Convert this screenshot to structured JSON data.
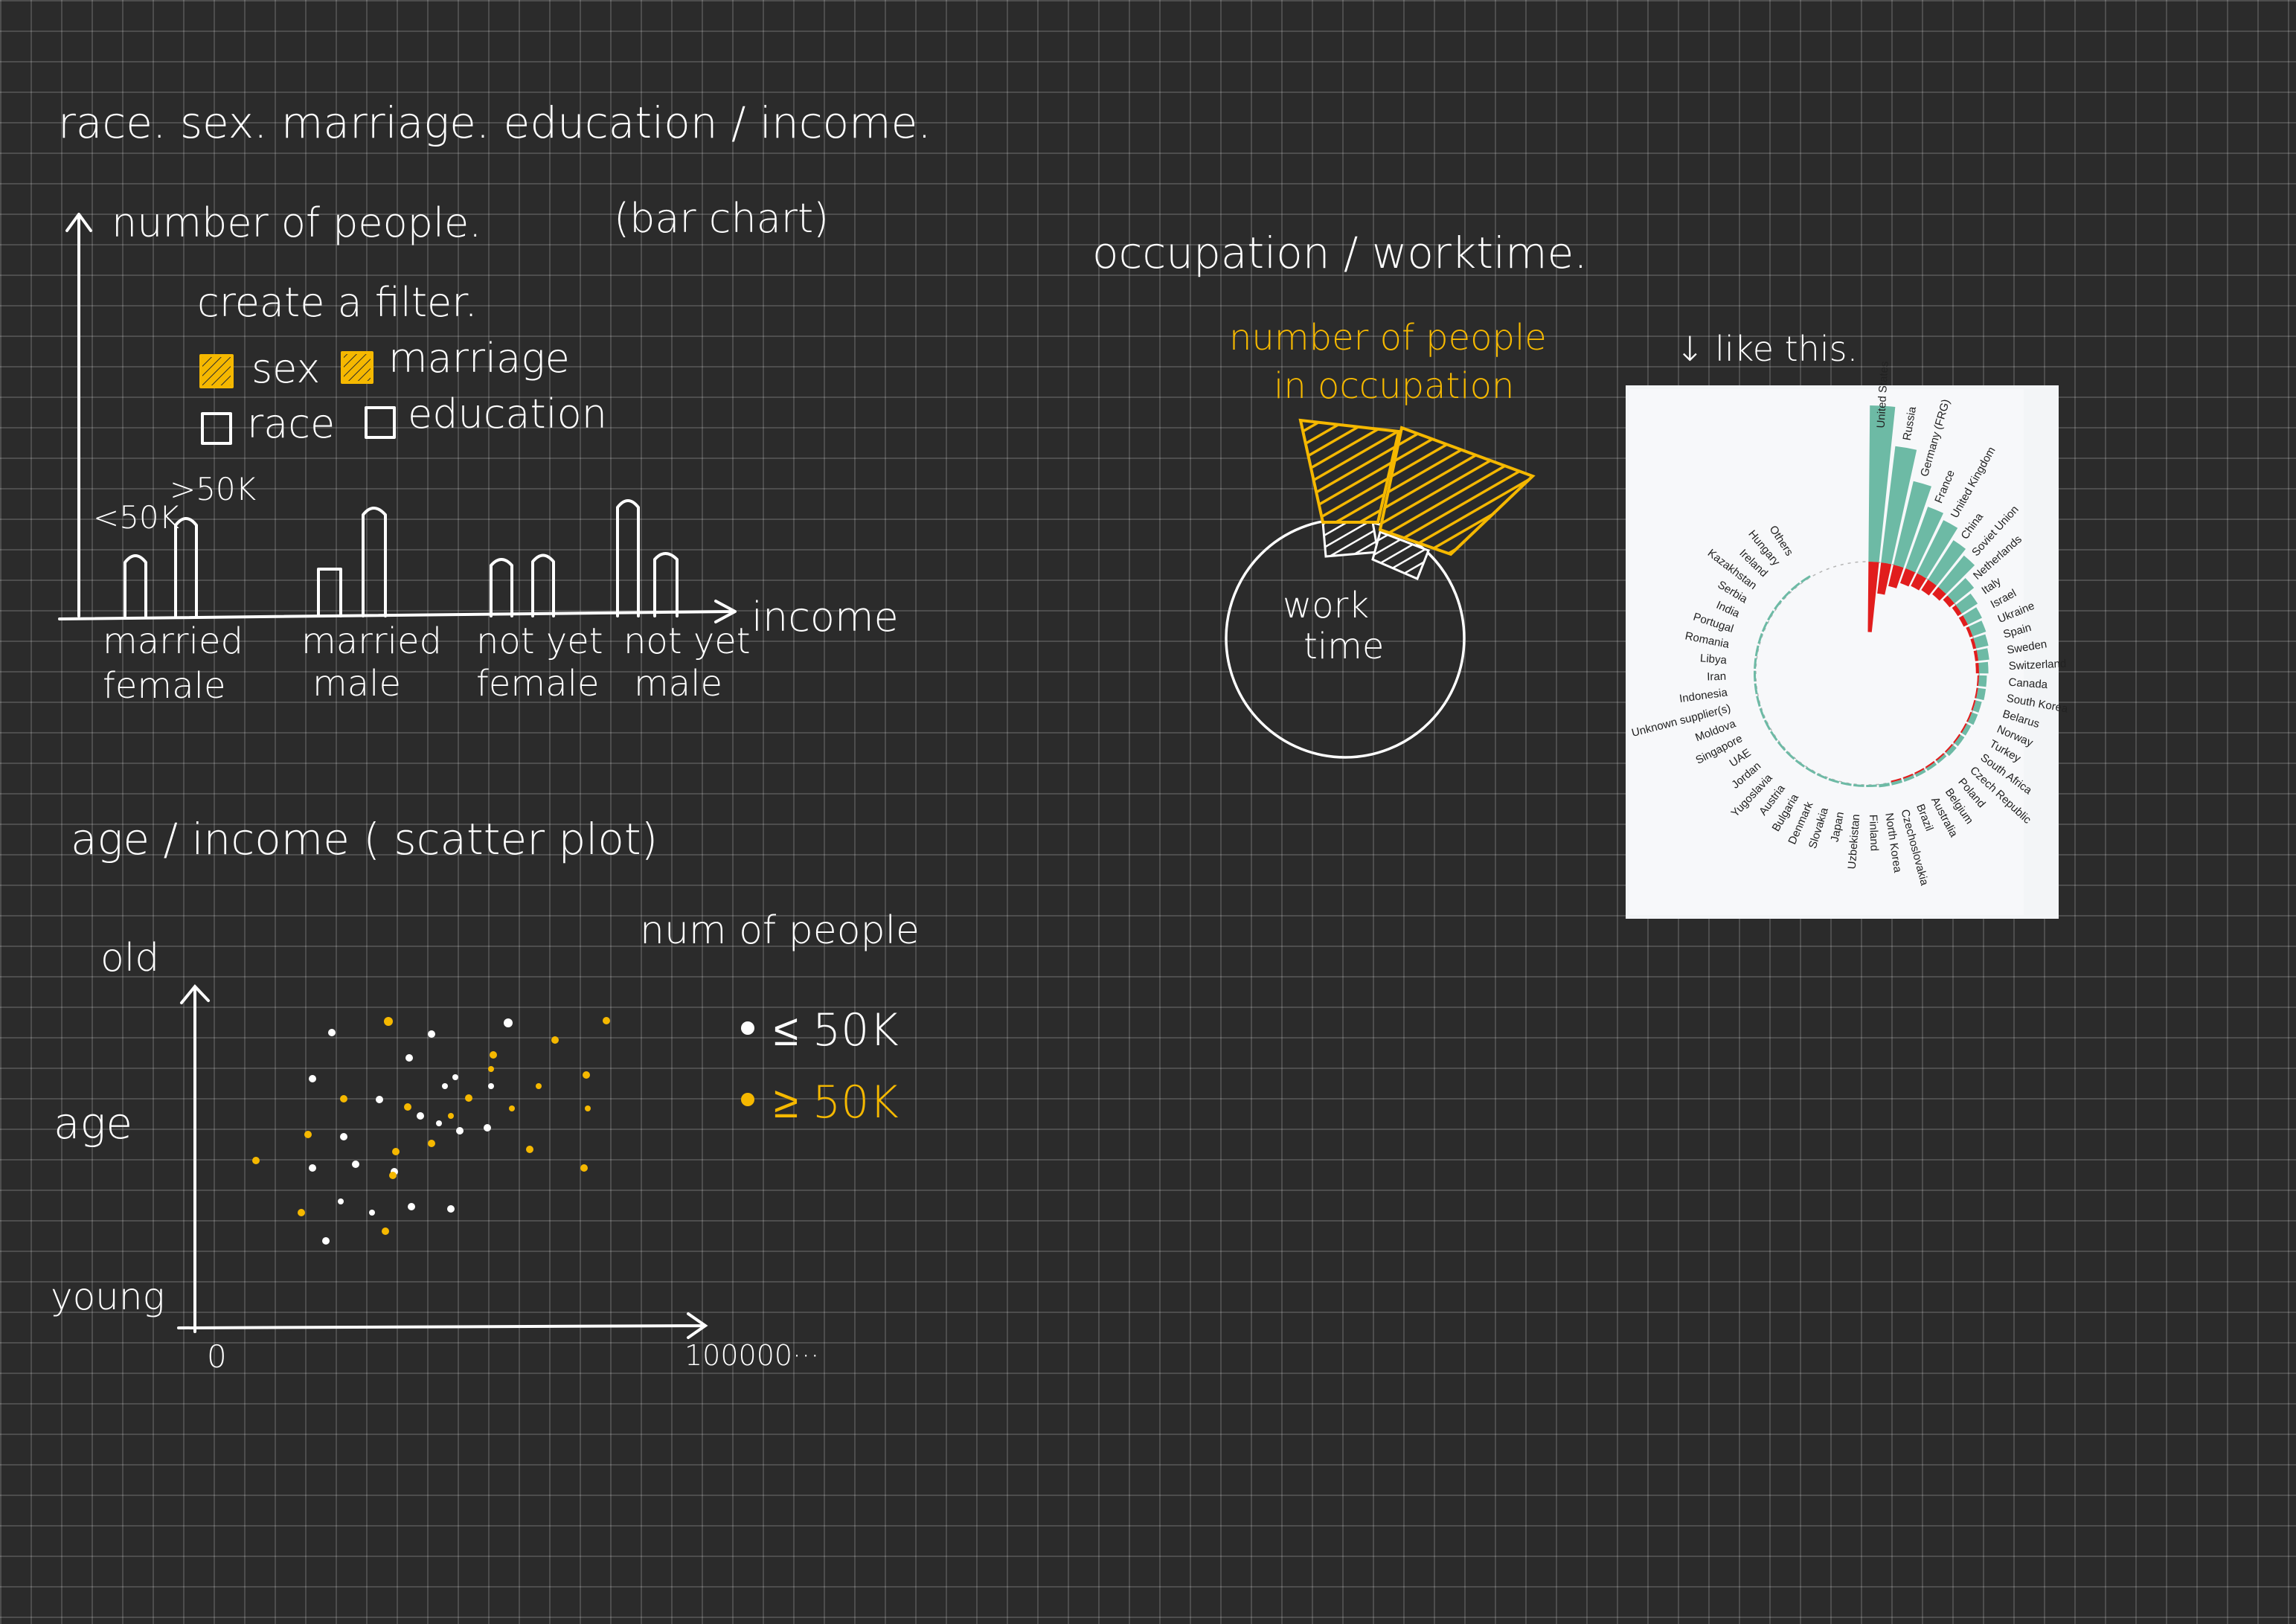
{
  "colors": {
    "background": "#2b2b2b",
    "ink": "#ffffff",
    "accent": "#f5b800",
    "reference_bg": "#f3f5f7",
    "reference_text": "#222222",
    "reference_teal": "#6dbaa5",
    "reference_red": "#e11d1d"
  },
  "section1": {
    "title": "race. sex. marriage. education / income.",
    "y_label": "number of people.",
    "chart_note": "(bar chart)",
    "filter_title": "create a filter.",
    "filters": [
      {
        "label": "sex",
        "checked": true
      },
      {
        "label": "marriage",
        "checked": true
      },
      {
        "label": "race",
        "checked": false
      },
      {
        "label": "education",
        "checked": false
      }
    ],
    "legend_low": "<50K",
    "legend_high": ">50K",
    "x_label": "income",
    "groups": [
      {
        "line1": "married",
        "line2": "female"
      },
      {
        "line1": "married",
        "line2": "male"
      },
      {
        "line1": "not yet",
        "line2": "female"
      },
      {
        "line1": "not yet",
        "line2": "male"
      }
    ]
  },
  "section2": {
    "title": "age / income ( scatter plot)",
    "y_top": "old",
    "y_label": "age",
    "y_bottom": "young",
    "x_start": "0",
    "x_end": "100000···",
    "legend_title": "num of people",
    "legend": [
      {
        "label": "≤ 50K",
        "color": "#ffffff"
      },
      {
        "label": "≥ 50K",
        "color": "#f5b800"
      }
    ]
  },
  "section3": {
    "title": "occupation / worktime.",
    "annotation_line1": "number of people",
    "annotation_line2": "in occupation",
    "center_line1": "work",
    "center_line2": "time",
    "reference_note": "↓ like this."
  },
  "reference_chart": {
    "type": "radial-bar",
    "categories": [
      "United States",
      "Russia",
      "Germany (FRG)",
      "France",
      "United Kingdom",
      "China",
      "Soviet Union",
      "Netherlands",
      "Italy",
      "Israel",
      "Ukraine",
      "Spain",
      "Sweden",
      "Switzerland",
      "Canada",
      "South Korea",
      "Belarus",
      "Norway",
      "Turkey",
      "South Africa",
      "Czech Republic",
      "Poland",
      "Belgium",
      "Australia",
      "Brazil",
      "Czechoslovakia",
      "North Korea",
      "Finland",
      "Uzbekistan",
      "Japan",
      "Slovakia",
      "Denmark",
      "Bulgaria",
      "Austria",
      "Yugoslavia",
      "Jordan",
      "UAE",
      "Singapore",
      "Moldova",
      "Unknown supplier(s)",
      "Indonesia",
      "Iran",
      "Libya",
      "Romania",
      "Portugal",
      "India",
      "Serbia",
      "Kazakhstan",
      "Ireland",
      "Hungary",
      "Others"
    ],
    "series": [
      {
        "values": [
          100,
          75,
          55,
          42,
          38,
          30,
          26,
          16,
          12,
          10,
          9,
          8,
          7,
          6,
          5,
          5,
          4,
          4,
          3,
          3,
          3,
          2,
          2,
          2,
          2,
          2,
          2,
          1,
          1,
          1,
          1,
          1,
          1,
          1,
          1,
          1,
          1,
          1,
          1,
          1,
          1,
          1,
          1,
          1,
          1,
          1,
          1,
          1,
          1,
          1,
          1
        ]
      },
      {
        "values": [
          45,
          20,
          14,
          10,
          9,
          8,
          6,
          4,
          3,
          3,
          2,
          2,
          2,
          2,
          1,
          1,
          1,
          1,
          1,
          1,
          1,
          1,
          1,
          1,
          1,
          1,
          0,
          0,
          0,
          0,
          0,
          0,
          0,
          0,
          0,
          0,
          0,
          0,
          0,
          0,
          0,
          0,
          0,
          0,
          0,
          0,
          0,
          0,
          0,
          0,
          0
        ]
      }
    ]
  }
}
